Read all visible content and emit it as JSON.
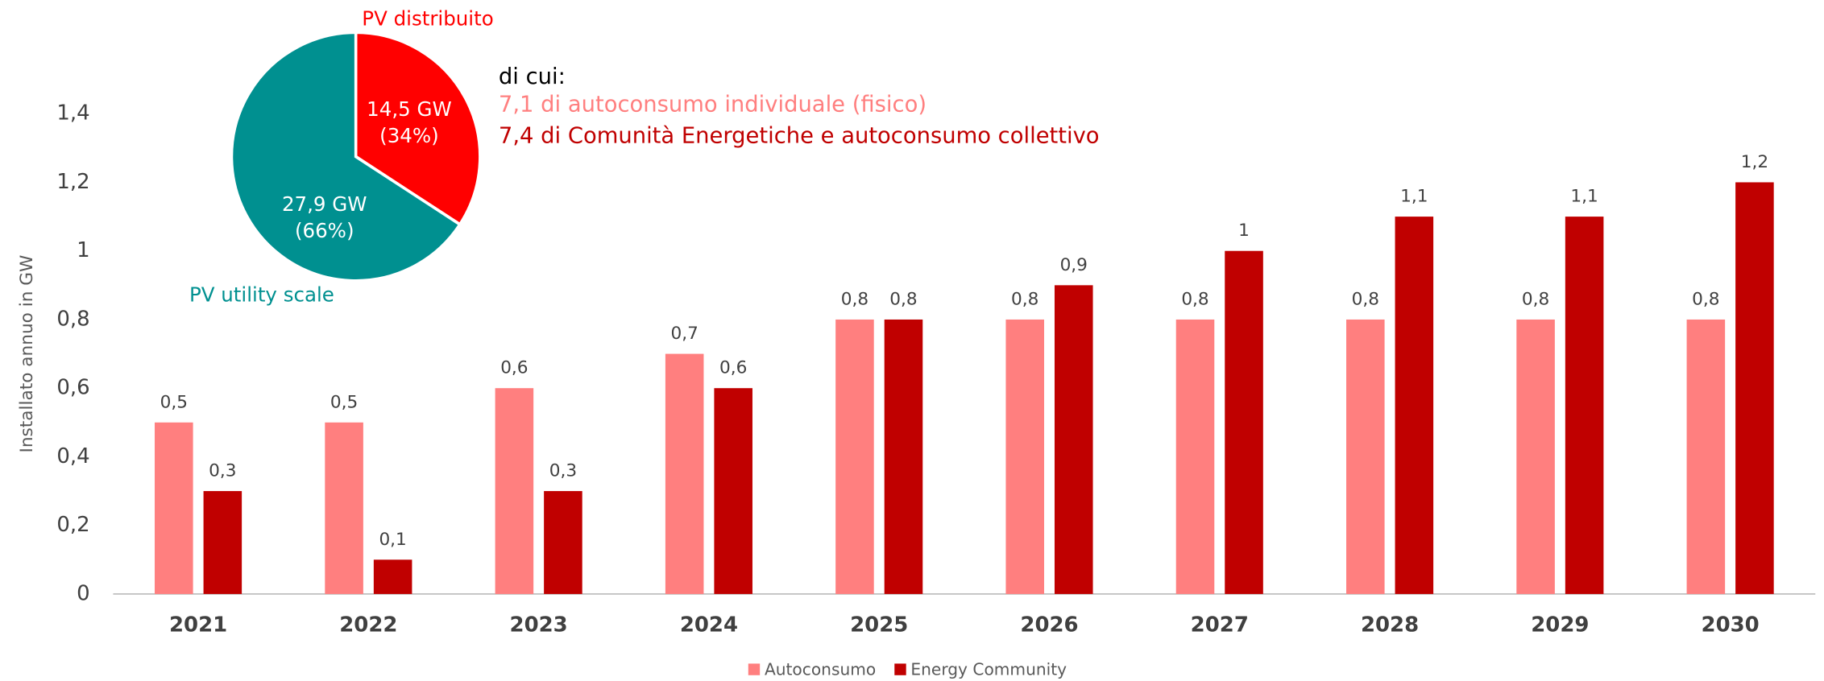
{
  "chart_data": [
    {
      "type": "bar",
      "y_label": "Installato annuo in GW",
      "categories": [
        "2021",
        "2022",
        "2023",
        "2024",
        "2025",
        "2026",
        "2027",
        "2028",
        "2029",
        "2030"
      ],
      "series": [
        {
          "name": "Autoconsumo",
          "color": "#ff7f7f",
          "values": [
            0.5,
            0.5,
            0.6,
            0.7,
            0.8,
            0.8,
            0.8,
            0.8,
            0.8,
            0.8
          ],
          "value_labels": [
            "0,5",
            "0,5",
            "0,6",
            "0,7",
            "0,8",
            "0,8",
            "0,8",
            "0,8",
            "0,8",
            "0,8"
          ]
        },
        {
          "name": "Energy Community",
          "color": "#c00000",
          "values": [
            0.3,
            0.1,
            0.3,
            0.6,
            0.8,
            0.9,
            1,
            1.1,
            1.1,
            1.2
          ],
          "value_labels": [
            "0,3",
            "0,1",
            "0,3",
            "0,6",
            "0,8",
            "0,9",
            "1",
            "1,1",
            "1,1",
            "1,2"
          ]
        }
      ],
      "ylim": [
        0,
        1.4
      ],
      "yticks": [
        0,
        {
          "value": 0.2,
          "label": "0,2"
        },
        {
          "value": 0.4,
          "label": "0,4"
        },
        {
          "value": 0.6,
          "label": "0,6"
        },
        {
          "value": 0.8,
          "label": "0,8"
        },
        1,
        {
          "value": 1.2,
          "label": "1,2"
        },
        {
          "value": 1.4,
          "label": "1,4"
        }
      ],
      "grid": false,
      "legend": "bottom"
    },
    {
      "type": "pie",
      "categories": [
        "PV distribuito",
        "PV utility scale"
      ],
      "values": [
        14.5,
        27.9
      ],
      "value_labels": [
        "14,5 GW",
        "27,9 GW"
      ],
      "percentages": [
        34,
        66
      ],
      "percentage_labels": [
        "(34%)",
        "(66%)"
      ],
      "colors": [
        "#ff0000",
        "#009090"
      ],
      "annotations": [
        {
          "text": "di cui:",
          "color": "#000000"
        },
        {
          "text": "7,1 di autoconsumo individuale (fisico)",
          "color": "#ff7f7f"
        },
        {
          "text": "7,4 di Comunità Energetiche e autoconsumo collettivo",
          "color": "#c00000"
        }
      ]
    }
  ]
}
